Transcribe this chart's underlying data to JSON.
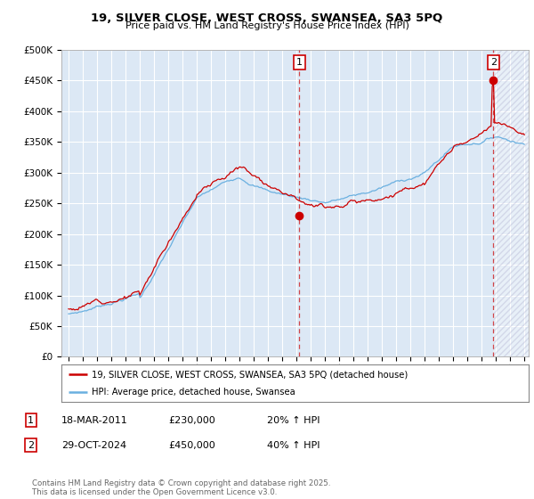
{
  "title": "19, SILVER CLOSE, WEST CROSS, SWANSEA, SA3 5PQ",
  "subtitle": "Price paid vs. HM Land Registry's House Price Index (HPI)",
  "ylim": [
    0,
    500000
  ],
  "yticks": [
    0,
    50000,
    100000,
    150000,
    200000,
    250000,
    300000,
    350000,
    400000,
    450000,
    500000
  ],
  "ytick_labels": [
    "£0",
    "£50K",
    "£100K",
    "£150K",
    "£200K",
    "£250K",
    "£300K",
    "£350K",
    "£400K",
    "£450K",
    "£500K"
  ],
  "xlim_start": 1994.5,
  "xlim_end": 2027.3,
  "hpi_color": "#6ab0e0",
  "price_color": "#cc0000",
  "background_color": "#dce8f5",
  "grid_color": "#ffffff",
  "hatch_color": "#bbccdd",
  "sale1_x": 2011.21,
  "sale1_y": 230000,
  "sale1_label": "1",
  "sale1_date": "18-MAR-2011",
  "sale1_price": "£230,000",
  "sale1_hpi": "20% ↑ HPI",
  "sale2_x": 2024.83,
  "sale2_y": 450000,
  "sale2_label": "2",
  "sale2_date": "29-OCT-2024",
  "sale2_price": "£450,000",
  "sale2_hpi": "40% ↑ HPI",
  "legend_line1": "19, SILVER CLOSE, WEST CROSS, SWANSEA, SA3 5PQ (detached house)",
  "legend_line2": "HPI: Average price, detached house, Swansea",
  "footnote": "Contains HM Land Registry data © Crown copyright and database right 2025.\nThis data is licensed under the Open Government Licence v3.0."
}
